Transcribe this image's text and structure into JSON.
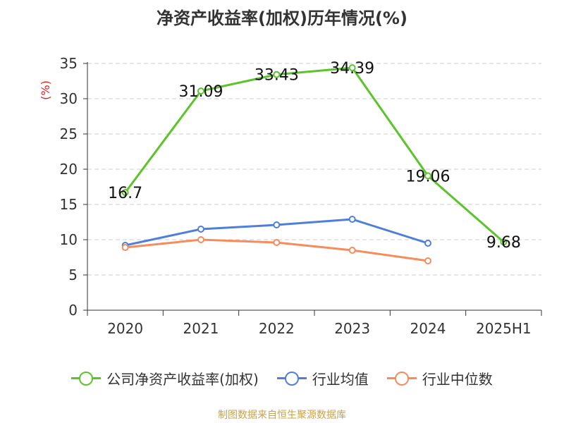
{
  "title": "净资产收益率(加权)历年情况(%)",
  "source": "制图数据来自恒生聚源数据库",
  "chart_data": {
    "type": "line",
    "title": "净资产收益率(加权)历年情况(%)",
    "ylabel": "(%)",
    "xlabel": "",
    "categories": [
      "2020",
      "2021",
      "2022",
      "2023",
      "2024",
      "2025H1"
    ],
    "ylim": [
      0,
      35
    ],
    "yticks": [
      0,
      5,
      10,
      15,
      20,
      25,
      30,
      35
    ],
    "grid": true,
    "legend_position": "bottom",
    "series": [
      {
        "name": "公司净资产收益率(加权)",
        "color": "#5bc42a",
        "values": [
          16.7,
          31.09,
          33.43,
          34.39,
          19.06,
          9.68
        ],
        "labels": [
          "16.7",
          "31.09",
          "33.43",
          "34.39",
          "19.06",
          "9.68"
        ]
      },
      {
        "name": "行业均值",
        "color": "#4f7fdb",
        "values": [
          9.2,
          11.5,
          12.1,
          12.9,
          9.5,
          null
        ]
      },
      {
        "name": "行业中位数",
        "color": "#f68c5c",
        "values": [
          8.9,
          10.0,
          9.6,
          8.5,
          7.0,
          null
        ]
      }
    ]
  }
}
